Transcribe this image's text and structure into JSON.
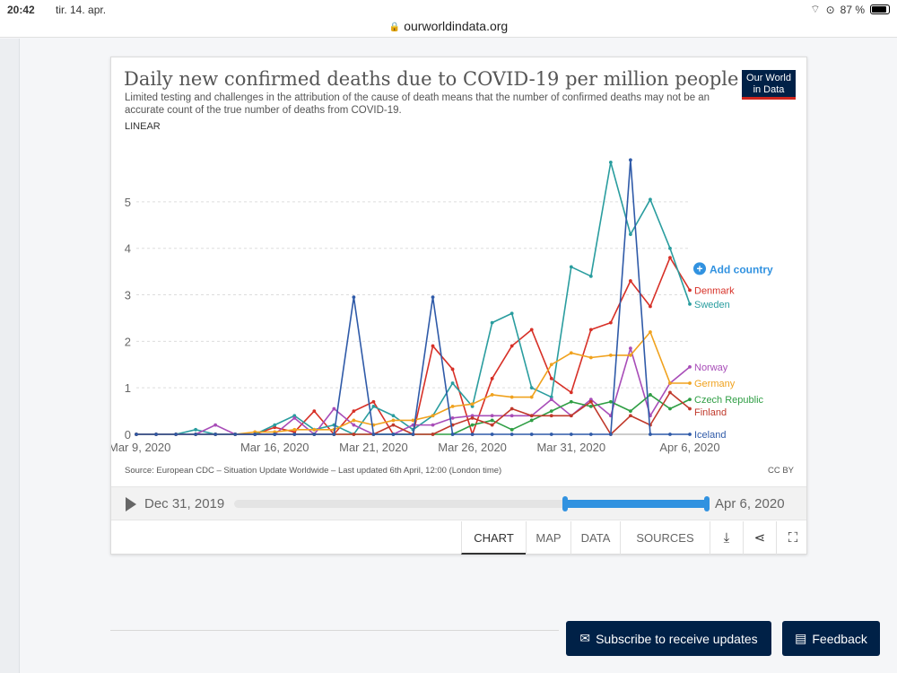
{
  "statusbar": {
    "time": "20:42",
    "date": "tir. 14. apr.",
    "battery": "87 %"
  },
  "browser": {
    "url": "ourworldindata.org"
  },
  "card": {
    "title": "Daily new confirmed deaths due to COVID-19 per million people",
    "subtitle": "Limited testing and challenges in the attribution of the cause of death means that the number of confirmed deaths may not be an accurate count of the true number of deaths from COVID-19.",
    "logo_line1": "Our World",
    "logo_line2": "in Data",
    "scale_toggle": "LINEAR",
    "add_country": "Add country",
    "source": "Source: European CDC – Situation Update Worldwide – Last updated 6th April, 12:00 (London time)",
    "license": "CC BY"
  },
  "timeline": {
    "start": "Dec 31, 2019",
    "end": "Apr 6, 2020",
    "range_start": 0.7,
    "range_end": 1.0
  },
  "tabs": {
    "chart": "CHART",
    "map": "MAP",
    "data": "DATA",
    "sources": "SOURCES"
  },
  "icons": {
    "download": "download-icon",
    "share": "share-icon",
    "expand": "expand-icon"
  },
  "footer": {
    "subscribe": "Subscribe to receive updates",
    "feedback": "Feedback"
  },
  "chart_data": {
    "type": "line",
    "title": "Daily new confirmed deaths due to COVID-19 per million people",
    "ylim": [
      0,
      5.5
    ],
    "yticks": [
      0,
      1,
      2,
      3,
      4,
      5
    ],
    "xtick_labels": [
      {
        "index": 0,
        "label": "Mar 9, 2020"
      },
      {
        "index": 7,
        "label": "Mar 16, 2020"
      },
      {
        "index": 12,
        "label": "Mar 21, 2020"
      },
      {
        "index": 17,
        "label": "Mar 26, 2020"
      },
      {
        "index": 22,
        "label": "Mar 31, 2020"
      },
      {
        "index": 28,
        "label": "Apr 6, 2020"
      }
    ],
    "x": [
      "Mar 9",
      "Mar 10",
      "Mar 11",
      "Mar 12",
      "Mar 13",
      "Mar 14",
      "Mar 15",
      "Mar 16",
      "Mar 17",
      "Mar 18",
      "Mar 19",
      "Mar 20",
      "Mar 21",
      "Mar 22",
      "Mar 23",
      "Mar 24",
      "Mar 25",
      "Mar 26",
      "Mar 27",
      "Mar 28",
      "Mar 29",
      "Mar 30",
      "Mar 31",
      "Apr 1",
      "Apr 2",
      "Apr 3",
      "Apr 4",
      "Apr 5",
      "Apr 6"
    ],
    "series": [
      {
        "name": "Denmark",
        "color": "#d73027",
        "values": [
          0,
          0,
          0,
          0,
          0,
          0,
          0,
          0.15,
          0.05,
          0.5,
          0,
          0.5,
          0.7,
          0,
          0,
          1.9,
          1.4,
          0,
          1.2,
          1.9,
          2.25,
          1.2,
          0.9,
          2.25,
          2.4,
          3.3,
          2.75,
          3.8,
          3.1
        ]
      },
      {
        "name": "Sweden",
        "color": "#2a9d9f",
        "values": [
          0,
          0,
          0,
          0.1,
          0,
          0,
          0,
          0.2,
          0.4,
          0.1,
          0.2,
          0,
          0.6,
          0.4,
          0.1,
          0.4,
          1.1,
          0.6,
          2.4,
          2.6,
          1.0,
          0.8,
          3.6,
          3.4,
          5.85,
          4.3,
          5.05,
          4.0,
          2.8
        ]
      },
      {
        "name": "Norway",
        "color": "#a84db8",
        "values": [
          0,
          0,
          0,
          0,
          0.2,
          0,
          0,
          0,
          0.35,
          0,
          0.55,
          0.2,
          0,
          0,
          0.2,
          0.2,
          0.35,
          0.4,
          0.4,
          0.4,
          0.4,
          0.75,
          0.4,
          0.75,
          0.4,
          1.85,
          0.4,
          1.1,
          1.45
        ]
      },
      {
        "name": "Germany",
        "color": "#f0a21e",
        "values": [
          0,
          0,
          0,
          0,
          0,
          0,
          0.05,
          0.05,
          0.1,
          0.1,
          0.1,
          0.3,
          0.2,
          0.3,
          0.3,
          0.4,
          0.6,
          0.65,
          0.85,
          0.8,
          0.8,
          1.5,
          1.75,
          1.65,
          1.7,
          1.7,
          2.2,
          1.1,
          1.1
        ]
      },
      {
        "name": "Czech Republic",
        "color": "#2f9e44",
        "values": [
          0,
          0,
          0,
          0,
          0,
          0,
          0,
          0,
          0,
          0,
          0,
          0,
          0,
          0,
          0,
          0,
          0,
          0.2,
          0.3,
          0.1,
          0.3,
          0.5,
          0.7,
          0.6,
          0.7,
          0.5,
          0.85,
          0.55,
          0.75
        ]
      },
      {
        "name": "Finland",
        "color": "#c0392b",
        "values": [
          0,
          0,
          0,
          0,
          0,
          0,
          0,
          0,
          0,
          0,
          0,
          0,
          0,
          0.2,
          0,
          0,
          0.2,
          0.35,
          0.2,
          0.55,
          0.4,
          0.4,
          0.4,
          0.7,
          0,
          0.4,
          0.2,
          0.9,
          0.55
        ]
      },
      {
        "name": "Iceland",
        "color": "#2f5aa8",
        "values": [
          0,
          0,
          0,
          0,
          0,
          0,
          0,
          0,
          0,
          0,
          0,
          2.95,
          0,
          0,
          0,
          2.95,
          0,
          0,
          0,
          0,
          0,
          0,
          0,
          0,
          0,
          5.9,
          0,
          0,
          0
        ]
      }
    ]
  }
}
